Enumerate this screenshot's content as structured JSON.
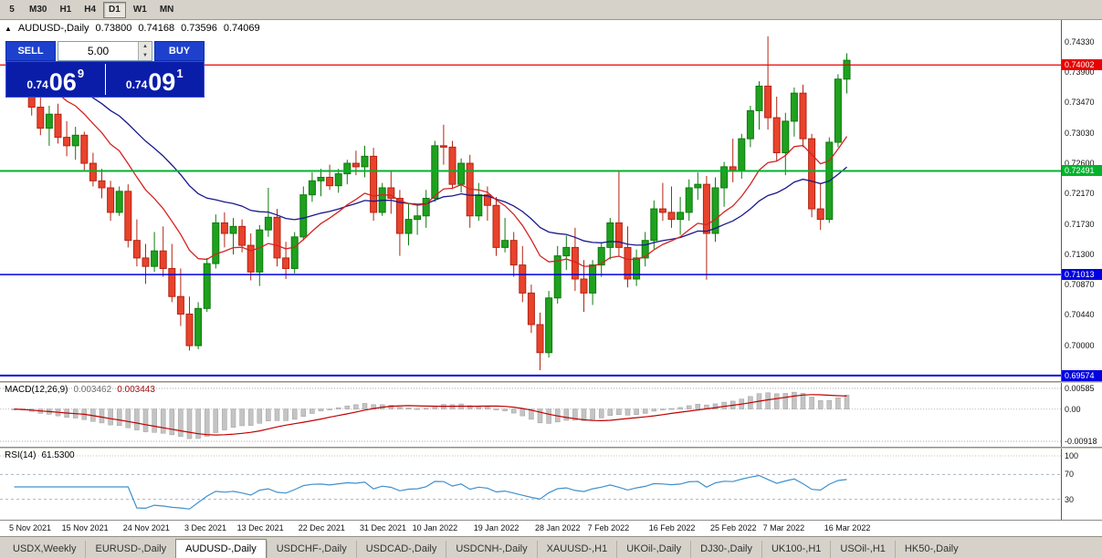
{
  "toolbar": {
    "timeframes": [
      "5",
      "M30",
      "H1",
      "H4",
      "D1",
      "W1",
      "MN"
    ],
    "active": "D1"
  },
  "chart": {
    "collapse_icon": "▲",
    "symbol_title": "AUDUSD-,Daily",
    "open": "0.73800",
    "high": "0.74168",
    "low": "0.73596",
    "close": "0.74069"
  },
  "one_click": {
    "sell_label": "SELL",
    "buy_label": "BUY",
    "volume": "5.00",
    "spin_up_icon": "▲",
    "spin_down_icon": "▼",
    "sell_price_prefix": "0.74",
    "sell_price_big": "06",
    "sell_price_sup": "9",
    "buy_price_prefix": "0.74",
    "buy_price_big": "09",
    "buy_price_sup": "1"
  },
  "indicators": {
    "macd_label": "MACD(12,26,9)",
    "macd_value_main": "0.003462",
    "macd_value_signal": "0.003443",
    "rsi_label": "RSI(14)",
    "rsi_value": "61.5300"
  },
  "axes": {
    "price_labels": [
      "0.74330",
      "0.73900",
      "0.73470",
      "0.73030",
      "0.72600",
      "0.72170",
      "0.71730",
      "0.71300",
      "0.70870",
      "0.70440",
      "0.70000"
    ],
    "macd_labels": [
      {
        "v": 0.00585,
        "t": "0.00585"
      },
      {
        "v": 0,
        "t": "0.00"
      },
      {
        "v": -0.00918,
        "t": "-0.00918"
      }
    ],
    "rsi_labels": [
      {
        "v": 100,
        "t": "100"
      },
      {
        "v": 70,
        "t": "70"
      },
      {
        "v": 30,
        "t": "30"
      }
    ],
    "date_labels": [
      [
        0,
        "5 Nov 2021"
      ],
      [
        6,
        "15 Nov 2021"
      ],
      [
        13,
        "24 Nov 2021"
      ],
      [
        20,
        "3 Dec 2021"
      ],
      [
        26,
        "13 Dec 2021"
      ],
      [
        33,
        "22 Dec 2021"
      ],
      [
        40,
        "31 Dec 2021"
      ],
      [
        46,
        "10 Jan 2022"
      ],
      [
        53,
        "19 Jan 2022"
      ],
      [
        60,
        "28 Jan 2022"
      ],
      [
        66,
        "7 Feb 2022"
      ],
      [
        73,
        "16 Feb 2022"
      ],
      [
        80,
        "25 Feb 2022"
      ],
      [
        86,
        "7 Mar 2022"
      ],
      [
        93,
        "16 Mar 2022"
      ]
    ]
  },
  "levels": [
    {
      "price": 0.74002,
      "label": "0.74002",
      "color": "#e80000",
      "width": 1.3
    },
    {
      "price": 0.72491,
      "label": "0.72491",
      "color": "#00b32c",
      "width": 2
    },
    {
      "price": 0.71013,
      "label": "0.71013",
      "color": "#0000e0",
      "width": 1.5
    },
    {
      "price": 0.69574,
      "label": "0.69574",
      "color": "#0000e0",
      "width": 2
    }
  ],
  "colors": {
    "candle_up": "#1fa11f",
    "candle_up_border": "#0c7a0c",
    "candle_down": "#e8432c",
    "candle_down_border": "#b32414",
    "ma_fast": "#d42424",
    "ma_slow": "#18188e",
    "macd_hist": "#c4c4c4",
    "macd_hist_border": "#9e9e9e",
    "macd_signal": "#c00000",
    "rsi_line": "#4090cc",
    "rsi_level": "#a8b4c8",
    "one_click_button": "#1d41cd",
    "one_click_panel": "#0a1da8"
  },
  "chart_data": {
    "type": "candlestick",
    "symbol": "AUDUSD",
    "timeframe": "Daily",
    "visible_price_range": [
      0.695,
      0.7464
    ],
    "indicator_params": {
      "ma_fast": 13,
      "ma_slow": 30,
      "macd": [
        12,
        26,
        9
      ],
      "rsi": 14
    },
    "candles": [
      [
        0.7392,
        0.7408,
        0.7355,
        0.74
      ],
      [
        0.74,
        0.741,
        0.7358,
        0.7368
      ],
      [
        0.7368,
        0.7385,
        0.7328,
        0.734
      ],
      [
        0.734,
        0.7368,
        0.73,
        0.731
      ],
      [
        0.731,
        0.7342,
        0.7285,
        0.733
      ],
      [
        0.733,
        0.7345,
        0.7288,
        0.7297
      ],
      [
        0.7297,
        0.732,
        0.727,
        0.7285
      ],
      [
        0.7285,
        0.7312,
        0.7265,
        0.73
      ],
      [
        0.73,
        0.7305,
        0.7248,
        0.726
      ],
      [
        0.726,
        0.7275,
        0.7227,
        0.7235
      ],
      [
        0.7235,
        0.7252,
        0.721,
        0.7225
      ],
      [
        0.7225,
        0.7235,
        0.7178,
        0.719
      ],
      [
        0.719,
        0.7227,
        0.7185,
        0.722
      ],
      [
        0.722,
        0.723,
        0.714,
        0.715
      ],
      [
        0.715,
        0.718,
        0.7113,
        0.7125
      ],
      [
        0.7125,
        0.7145,
        0.7088,
        0.7113
      ],
      [
        0.7113,
        0.7162,
        0.7105,
        0.7135
      ],
      [
        0.7135,
        0.717,
        0.7098,
        0.711
      ],
      [
        0.711,
        0.7145,
        0.7062,
        0.707
      ],
      [
        0.707,
        0.711,
        0.7028,
        0.7045
      ],
      [
        0.7045,
        0.707,
        0.6993,
        0.7
      ],
      [
        0.7,
        0.7062,
        0.6995,
        0.7053
      ],
      [
        0.7053,
        0.7125,
        0.7048,
        0.7117
      ],
      [
        0.7117,
        0.7187,
        0.711,
        0.7175
      ],
      [
        0.7175,
        0.719,
        0.714,
        0.716
      ],
      [
        0.716,
        0.7182,
        0.713,
        0.717
      ],
      [
        0.717,
        0.718,
        0.7133,
        0.7143
      ],
      [
        0.7143,
        0.716,
        0.7093,
        0.7105
      ],
      [
        0.7105,
        0.7172,
        0.7085,
        0.7165
      ],
      [
        0.7165,
        0.7225,
        0.7155,
        0.7183
      ],
      [
        0.7183,
        0.7195,
        0.7113,
        0.7125
      ],
      [
        0.7125,
        0.7148,
        0.7095,
        0.711
      ],
      [
        0.711,
        0.7162,
        0.7103,
        0.7155
      ],
      [
        0.7155,
        0.7227,
        0.715,
        0.7215
      ],
      [
        0.7215,
        0.7247,
        0.7205,
        0.7235
      ],
      [
        0.7235,
        0.7252,
        0.7213,
        0.724
      ],
      [
        0.724,
        0.7258,
        0.7222,
        0.7228
      ],
      [
        0.7228,
        0.7252,
        0.7218,
        0.7245
      ],
      [
        0.7245,
        0.7265,
        0.723,
        0.726
      ],
      [
        0.726,
        0.7278,
        0.7243,
        0.7255
      ],
      [
        0.7255,
        0.7285,
        0.724,
        0.727
      ],
      [
        0.727,
        0.7282,
        0.7178,
        0.719
      ],
      [
        0.719,
        0.7232,
        0.7185,
        0.7225
      ],
      [
        0.7225,
        0.725,
        0.7188,
        0.721
      ],
      [
        0.721,
        0.7222,
        0.7128,
        0.716
      ],
      [
        0.716,
        0.7202,
        0.7143,
        0.718
      ],
      [
        0.718,
        0.7202,
        0.7158,
        0.7185
      ],
      [
        0.7185,
        0.7222,
        0.7168,
        0.721
      ],
      [
        0.721,
        0.7292,
        0.7205,
        0.7285
      ],
      [
        0.7285,
        0.7315,
        0.7258,
        0.7283
      ],
      [
        0.7283,
        0.7292,
        0.7223,
        0.723
      ],
      [
        0.723,
        0.7267,
        0.7218,
        0.726
      ],
      [
        0.726,
        0.7272,
        0.7168,
        0.7185
      ],
      [
        0.7185,
        0.7232,
        0.7178,
        0.7215
      ],
      [
        0.7215,
        0.7227,
        0.7178,
        0.72
      ],
      [
        0.72,
        0.7212,
        0.7128,
        0.714
      ],
      [
        0.714,
        0.7182,
        0.7133,
        0.715
      ],
      [
        0.715,
        0.7162,
        0.7098,
        0.7115
      ],
      [
        0.7115,
        0.7142,
        0.7062,
        0.7075
      ],
      [
        0.7075,
        0.7087,
        0.7018,
        0.703
      ],
      [
        0.703,
        0.7047,
        0.6965,
        0.699
      ],
      [
        0.699,
        0.7078,
        0.6983,
        0.7068
      ],
      [
        0.7068,
        0.7142,
        0.706,
        0.7128
      ],
      [
        0.7128,
        0.7157,
        0.7108,
        0.714
      ],
      [
        0.714,
        0.7168,
        0.7078,
        0.7095
      ],
      [
        0.7095,
        0.7122,
        0.7048,
        0.7075
      ],
      [
        0.7075,
        0.7122,
        0.7058,
        0.7115
      ],
      [
        0.7115,
        0.7147,
        0.7098,
        0.714
      ],
      [
        0.714,
        0.7182,
        0.7123,
        0.7175
      ],
      [
        0.7175,
        0.725,
        0.7128,
        0.714
      ],
      [
        0.714,
        0.717,
        0.7083,
        0.7095
      ],
      [
        0.7095,
        0.7137,
        0.7085,
        0.7125
      ],
      [
        0.7125,
        0.7162,
        0.7113,
        0.715
      ],
      [
        0.715,
        0.7207,
        0.7138,
        0.7195
      ],
      [
        0.7195,
        0.7232,
        0.7178,
        0.719
      ],
      [
        0.719,
        0.7227,
        0.7168,
        0.718
      ],
      [
        0.718,
        0.7212,
        0.7158,
        0.719
      ],
      [
        0.719,
        0.7237,
        0.7178,
        0.7225
      ],
      [
        0.7225,
        0.7247,
        0.7208,
        0.723
      ],
      [
        0.723,
        0.7242,
        0.7094,
        0.716
      ],
      [
        0.716,
        0.724,
        0.7148,
        0.7225
      ],
      [
        0.7225,
        0.7262,
        0.7198,
        0.7255
      ],
      [
        0.7255,
        0.7295,
        0.7233,
        0.725
      ],
      [
        0.725,
        0.7302,
        0.7238,
        0.7295
      ],
      [
        0.7295,
        0.7342,
        0.7283,
        0.7335
      ],
      [
        0.7335,
        0.7377,
        0.7308,
        0.737
      ],
      [
        0.737,
        0.7441,
        0.7308,
        0.7325
      ],
      [
        0.7325,
        0.7355,
        0.7263,
        0.7275
      ],
      [
        0.7275,
        0.7332,
        0.7243,
        0.732
      ],
      [
        0.732,
        0.7368,
        0.7298,
        0.736
      ],
      [
        0.736,
        0.7372,
        0.7283,
        0.7295
      ],
      [
        0.7295,
        0.7302,
        0.7183,
        0.7195
      ],
      [
        0.7195,
        0.7232,
        0.7165,
        0.718
      ],
      [
        0.718,
        0.7297,
        0.7175,
        0.729
      ],
      [
        0.729,
        0.7387,
        0.7283,
        0.738
      ],
      [
        0.738,
        0.74168,
        0.73596,
        0.74069
      ]
    ]
  },
  "tabs": {
    "items": [
      "USDX,Weekly",
      "EURUSD-,Daily",
      "AUDUSD-,Daily",
      "USDCHF-,Daily",
      "USDCAD-,Daily",
      "USDCNH-,Daily",
      "XAUUSD-,H1",
      "UKOil-,Daily",
      "DJ30-,Daily",
      "UK100-,H1",
      "USOil-,H1",
      "HK50-,Daily"
    ],
    "active": "AUDUSD-,Daily"
  }
}
